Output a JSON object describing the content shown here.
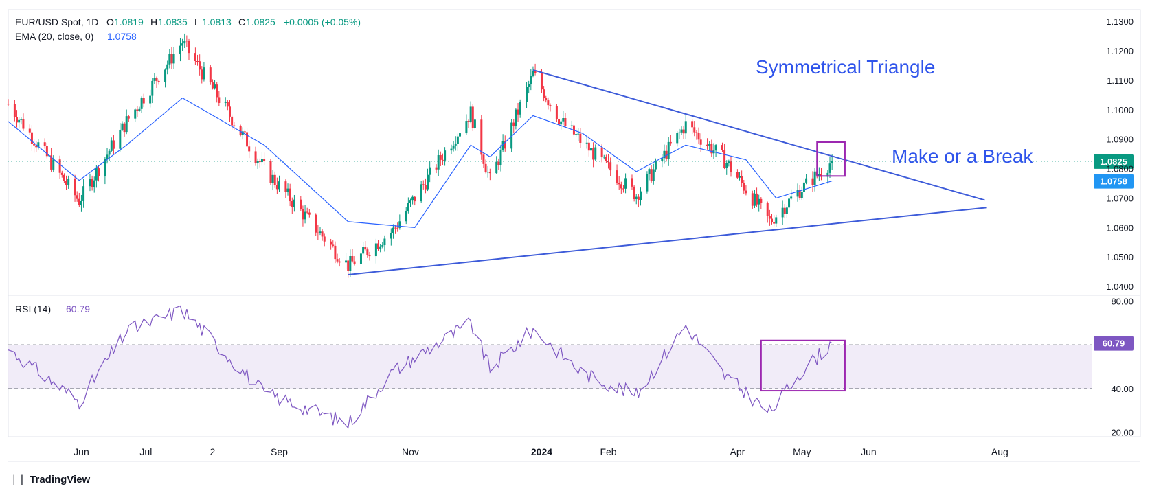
{
  "header": {
    "symbol": "EUR/USD Spot, 1D",
    "ohlc": [
      {
        "k": "O",
        "v": "1.0819"
      },
      {
        "k": "H",
        "v": "1.0835"
      },
      {
        "k": "L",
        "v": "1.0813"
      },
      {
        "k": "C",
        "v": "1.0825"
      }
    ],
    "change": "+0.0005 (+0.05%)",
    "ema_label": "EMA (20, close, 0)",
    "ema_value": "1.0758",
    "rsi_label": "RSI (14)",
    "rsi_value": "60.79"
  },
  "annotations": {
    "triangle": "Symmetrical Triangle",
    "break": "Make or a Break"
  },
  "footer": {
    "brand": "TradingView",
    "logo": "tradingview-logo"
  },
  "colors": {
    "up": "#089981",
    "down": "#f23645",
    "ema": "#2962ff",
    "trend": "#3d5bd9",
    "rsi": "#7e57c2",
    "box": "#9c27b0",
    "price_tag": "#089981",
    "ema_tag": "#2196f3"
  },
  "chart_data": [
    {
      "type": "candlestick",
      "title": "EUR/USD Spot, 1D",
      "y_ticks": [
        "1.1300",
        "1.1200",
        "1.1100",
        "1.1000",
        "1.0900",
        "1.0800",
        "1.0700",
        "1.0600",
        "1.0500",
        "1.0400"
      ],
      "ylim": [
        1.037,
        1.134
      ],
      "x_ticks": [
        "Jun",
        "Jul",
        "2",
        "Sep",
        "Nov",
        "2024",
        "Feb",
        "Apr",
        "May",
        "Jun",
        "Aug"
      ],
      "last_price": "1.0825",
      "ema_last": "1.0758",
      "key_points": [
        {
          "date": "2023-04-28",
          "close": 1.102
        },
        {
          "date": "2023-05-31",
          "close": 1.069
        },
        {
          "date": "2023-06-22",
          "close": 1.096
        },
        {
          "date": "2023-07-18",
          "close": 1.123
        },
        {
          "date": "2023-08-25",
          "close": 1.08
        },
        {
          "date": "2023-10-03",
          "close": 1.047
        },
        {
          "date": "2023-10-24",
          "close": 1.059
        },
        {
          "date": "2023-11-29",
          "close": 1.099
        },
        {
          "date": "2023-12-08",
          "close": 1.076
        },
        {
          "date": "2023-12-28",
          "close": 1.112
        },
        {
          "date": "2024-01-10",
          "close": 1.096
        },
        {
          "date": "2024-02-14",
          "close": 1.071
        },
        {
          "date": "2024-03-08",
          "close": 1.095
        },
        {
          "date": "2024-03-26",
          "close": 1.083
        },
        {
          "date": "2024-04-16",
          "close": 1.062
        },
        {
          "date": "2024-04-29",
          "close": 1.072
        },
        {
          "date": "2024-05-15",
          "close": 1.0825
        }
      ],
      "ema": [
        {
          "date": "2023-04-28",
          "v": 1.096
        },
        {
          "date": "2023-05-31",
          "v": 1.076
        },
        {
          "date": "2023-06-22",
          "v": 1.088
        },
        {
          "date": "2023-07-18",
          "v": 1.104
        },
        {
          "date": "2023-08-25",
          "v": 1.088
        },
        {
          "date": "2023-10-03",
          "v": 1.062
        },
        {
          "date": "2023-11-03",
          "v": 1.06
        },
        {
          "date": "2023-11-29",
          "v": 1.088
        },
        {
          "date": "2023-12-08",
          "v": 1.084
        },
        {
          "date": "2023-12-28",
          "v": 1.098
        },
        {
          "date": "2024-01-20",
          "v": 1.092
        },
        {
          "date": "2024-02-14",
          "v": 1.079
        },
        {
          "date": "2024-03-08",
          "v": 1.088
        },
        {
          "date": "2024-04-05",
          "v": 1.083
        },
        {
          "date": "2024-04-19",
          "v": 1.07
        },
        {
          "date": "2024-05-15",
          "v": 1.0758
        }
      ],
      "trendlines": [
        {
          "from": {
            "date": "2023-10-03",
            "v": 1.044
          },
          "to": {
            "date": "2024-07-26",
            "v": 1.0668
          }
        },
        {
          "from": {
            "date": "2023-12-28",
            "v": 1.1135
          },
          "to": {
            "date": "2024-07-25",
            "v": 1.0693
          }
        }
      ],
      "box": {
        "from_date": "2024-05-08",
        "to_date": "2024-05-21",
        "top": 1.089,
        "bottom": 1.0775
      }
    },
    {
      "type": "line",
      "title": "RSI (14)",
      "y_ticks": [
        "80.00",
        "40.00",
        "20.00"
      ],
      "ylim": [
        18,
        82
      ],
      "band": [
        40,
        60
      ],
      "last": "60.79",
      "points": [
        {
          "date": "2023-04-28",
          "v": 58
        },
        {
          "date": "2023-05-31",
          "v": 34
        },
        {
          "date": "2023-06-22",
          "v": 66
        },
        {
          "date": "2023-07-18",
          "v": 76
        },
        {
          "date": "2023-08-25",
          "v": 38
        },
        {
          "date": "2023-10-03",
          "v": 24
        },
        {
          "date": "2023-10-24",
          "v": 48
        },
        {
          "date": "2023-11-29",
          "v": 70
        },
        {
          "date": "2023-12-08",
          "v": 49
        },
        {
          "date": "2023-12-28",
          "v": 67
        },
        {
          "date": "2024-01-20",
          "v": 47
        },
        {
          "date": "2024-02-14",
          "v": 37
        },
        {
          "date": "2024-03-08",
          "v": 69
        },
        {
          "date": "2024-03-26",
          "v": 46
        },
        {
          "date": "2024-04-16",
          "v": 29
        },
        {
          "date": "2024-04-29",
          "v": 46
        },
        {
          "date": "2024-05-15",
          "v": 60.79
        }
      ],
      "box": {
        "from_date": "2024-04-12",
        "to_date": "2024-05-21",
        "top": 62,
        "bottom": 39
      }
    }
  ]
}
